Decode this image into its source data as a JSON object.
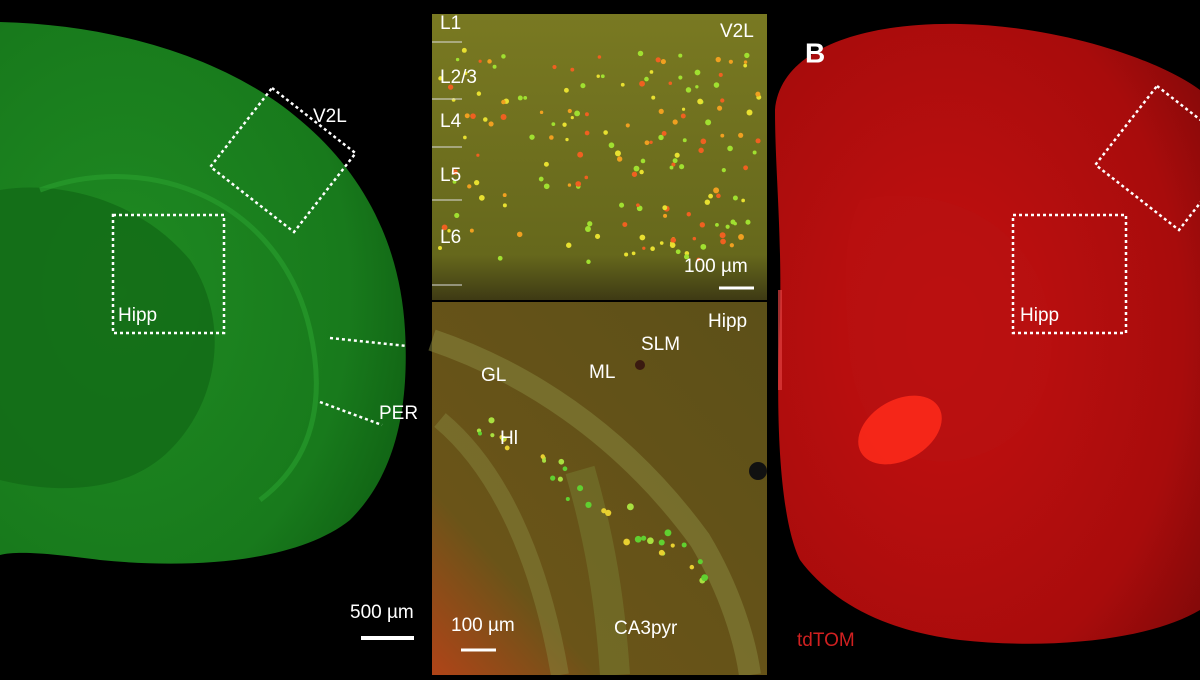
{
  "left_panel": {
    "labels": [
      "V2L",
      "Hipp",
      "PER"
    ],
    "scale_bar": "500 µm"
  },
  "middle_top": {
    "layers": [
      "L1",
      "L2/3",
      "L4",
      "L5",
      "L6"
    ],
    "region": "V2L",
    "scale_bar": "100 µm"
  },
  "middle_bottom": {
    "region": "Hipp",
    "labels": [
      "SLM",
      "ML",
      "GL",
      "Hl",
      "CA3pyr"
    ],
    "scale_bar": "100 µm"
  },
  "right_panel": {
    "panel_letter": "B",
    "labels": [
      "Hipp"
    ],
    "stain": "tdTOM"
  }
}
